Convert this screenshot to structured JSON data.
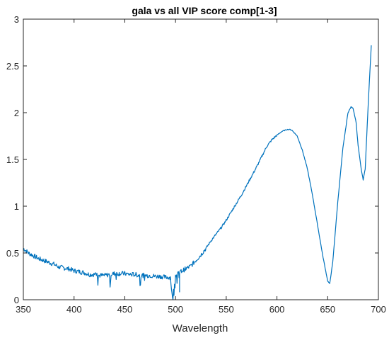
{
  "chart_data": {
    "type": "line",
    "title": "gala vs all VIP score comp[1-3]",
    "xlabel": "Wavelength",
    "ylabel": "",
    "xlim": [
      350,
      700
    ],
    "ylim": [
      0,
      3
    ],
    "xticks": [
      350,
      400,
      450,
      500,
      550,
      600,
      650,
      700
    ],
    "yticks": [
      0,
      0.5,
      1,
      1.5,
      2,
      2.5,
      3
    ],
    "xtick_labels": [
      "350",
      "400",
      "450",
      "500",
      "550",
      "600",
      "650",
      "700"
    ],
    "ytick_labels": [
      "0",
      "0.5",
      "1",
      "1.5",
      "2",
      "2.5",
      "3"
    ],
    "grid": false,
    "line_color": "#0072BD",
    "series": [
      {
        "x": [
          350,
          355,
          360,
          365,
          370,
          375,
          380,
          385,
          390,
          395,
          400,
          405,
          410,
          415,
          420,
          425,
          430,
          435,
          440,
          445,
          450,
          455,
          460,
          465,
          470,
          475,
          480,
          485,
          490,
          495,
          497,
          500,
          503,
          505,
          510,
          515,
          520,
          525,
          530,
          535,
          540,
          545,
          550,
          555,
          560,
          565,
          570,
          575,
          580,
          585,
          590,
          595,
          600,
          605,
          610,
          613,
          615,
          620,
          625,
          630,
          635,
          640,
          645,
          650,
          652,
          655,
          660,
          665,
          670,
          673,
          675,
          678,
          680,
          683,
          685,
          687,
          690,
          693
        ],
        "y": [
          0.55,
          0.5,
          0.47,
          0.44,
          0.42,
          0.4,
          0.38,
          0.35,
          0.34,
          0.33,
          0.31,
          0.3,
          0.29,
          0.27,
          0.27,
          0.26,
          0.26,
          0.27,
          0.28,
          0.28,
          0.28,
          0.27,
          0.27,
          0.26,
          0.26,
          0.26,
          0.25,
          0.25,
          0.24,
          0.24,
          0.01,
          0.26,
          0.28,
          0.3,
          0.33,
          0.36,
          0.42,
          0.48,
          0.55,
          0.63,
          0.7,
          0.77,
          0.85,
          0.94,
          1.03,
          1.12,
          1.22,
          1.32,
          1.42,
          1.53,
          1.64,
          1.71,
          1.76,
          1.8,
          1.82,
          1.82,
          1.81,
          1.75,
          1.6,
          1.4,
          1.12,
          0.8,
          0.48,
          0.2,
          0.17,
          0.4,
          1.05,
          1.62,
          2.0,
          2.06,
          2.05,
          1.9,
          1.65,
          1.4,
          1.28,
          1.4,
          2.1,
          2.72
        ]
      }
    ]
  }
}
